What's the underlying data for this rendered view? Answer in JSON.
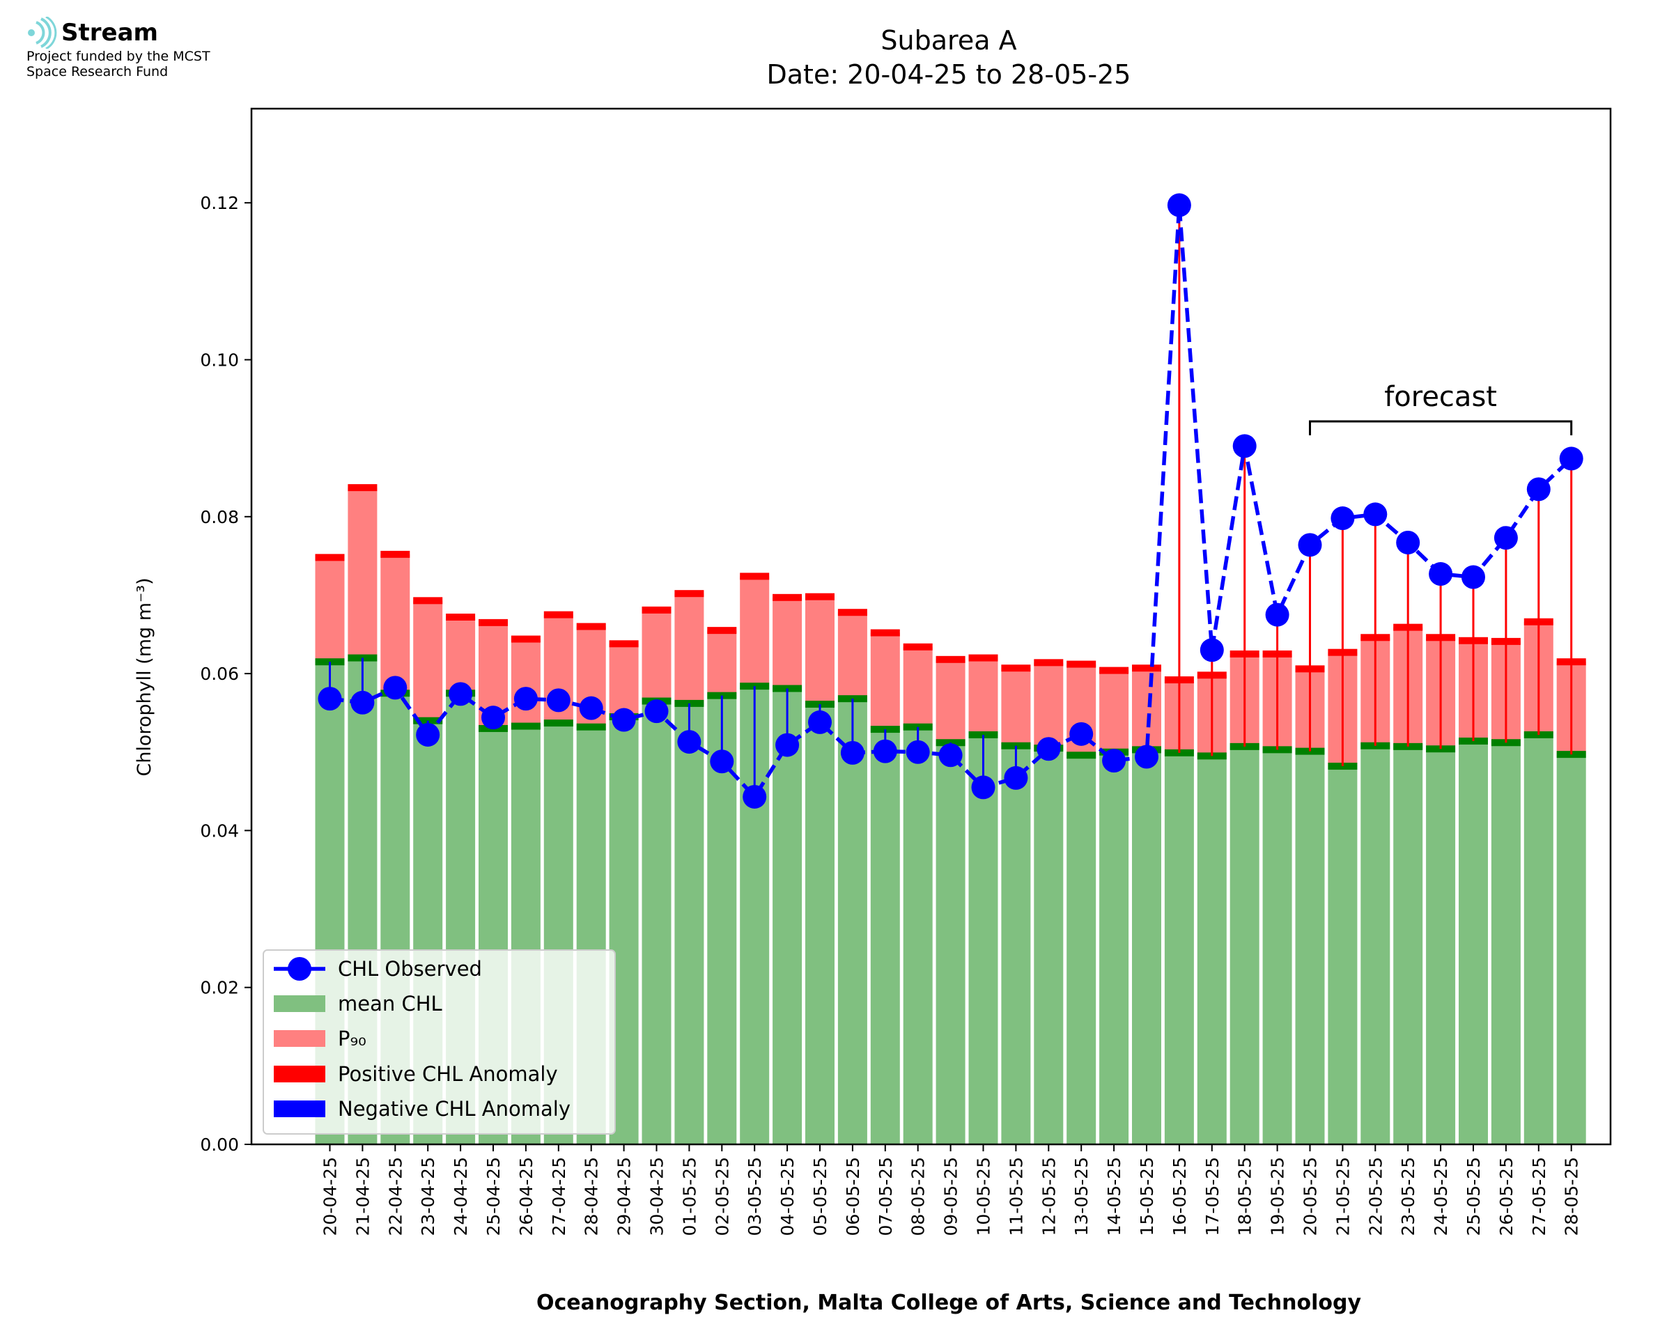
{
  "logo": {
    "name": "Stream",
    "line1": "Project funded by the MCST",
    "line2": "Space Research Fund"
  },
  "colors": {
    "mean": "#80c080",
    "p90": "#ff8080",
    "positive": "#ff0000",
    "negative": "#0000ff",
    "observed": "#0000ff",
    "mean_cap": "#008000"
  },
  "chart_data": {
    "type": "bar",
    "title": "Subarea A",
    "subtitle": "Date: 20-04-25 to 28-05-25",
    "xlabel": "Oceanography Section, Malta College of Arts, Science and Technology",
    "ylabel": "Chlorophyll (mg m⁻³)",
    "ylim": [
      0,
      0.132
    ],
    "yticks": [
      "0.00",
      "0.02",
      "0.04",
      "0.06",
      "0.08",
      "0.10",
      "0.12"
    ],
    "ytick_values": [
      0,
      0.02,
      0.04,
      0.06,
      0.08,
      0.1,
      0.12
    ],
    "categories": [
      "20-04-25",
      "21-04-25",
      "22-04-25",
      "23-04-25",
      "24-04-25",
      "25-04-25",
      "26-04-25",
      "27-04-25",
      "28-04-25",
      "29-04-25",
      "30-04-25",
      "01-05-25",
      "02-05-25",
      "03-05-25",
      "04-05-25",
      "05-05-25",
      "06-05-25",
      "07-05-25",
      "08-05-25",
      "09-05-25",
      "10-05-25",
      "11-05-25",
      "12-05-25",
      "13-05-25",
      "14-05-25",
      "15-05-25",
      "16-05-25",
      "17-05-25",
      "18-05-25",
      "19-05-25",
      "20-05-25",
      "21-05-25",
      "22-05-25",
      "23-05-25",
      "24-05-25",
      "25-05-25",
      "26-05-25",
      "27-05-25",
      "28-05-25"
    ],
    "series": [
      {
        "name": "mean CHL",
        "values": [
          0.0615,
          0.062,
          0.0575,
          0.054,
          0.0575,
          0.053,
          0.0533,
          0.0537,
          0.0532,
          0.0545,
          0.0565,
          0.0562,
          0.0572,
          0.0584,
          0.0581,
          0.0561,
          0.0568,
          0.0529,
          0.0532,
          0.0512,
          0.0522,
          0.0508,
          0.0505,
          0.0496,
          0.05,
          0.0503,
          0.0499,
          0.0495,
          0.0507,
          0.0503,
          0.0501,
          0.0482,
          0.0508,
          0.0507,
          0.0504,
          0.0514,
          0.0512,
          0.0522,
          0.0497
        ]
      },
      {
        "name": "P₉₀",
        "values": [
          0.0748,
          0.0837,
          0.0752,
          0.0693,
          0.0672,
          0.0665,
          0.0644,
          0.0675,
          0.066,
          0.0638,
          0.0681,
          0.0702,
          0.0655,
          0.0724,
          0.0697,
          0.0698,
          0.0678,
          0.0652,
          0.0634,
          0.0618,
          0.062,
          0.0607,
          0.0614,
          0.0612,
          0.0604,
          0.0607,
          0.0592,
          0.0598,
          0.0625,
          0.0625,
          0.0606,
          0.0627,
          0.0646,
          0.0659,
          0.0646,
          0.0642,
          0.0641,
          0.0666,
          0.0615
        ]
      },
      {
        "name": "CHL Observed",
        "values": [
          0.0568,
          0.0563,
          0.0582,
          0.0522,
          0.0574,
          0.0544,
          0.0568,
          0.0566,
          0.0556,
          0.0541,
          0.0552,
          0.0513,
          0.0488,
          0.0443,
          0.0509,
          0.0538,
          0.0499,
          0.0501,
          0.05,
          0.0496,
          0.0455,
          0.0467,
          0.0504,
          0.0523,
          0.0489,
          0.0494,
          0.1197,
          0.063,
          0.089,
          0.0675,
          0.0764,
          0.0798,
          0.0803,
          0.0767,
          0.0727,
          0.0723,
          0.0773,
          0.0835,
          0.0874
        ]
      }
    ],
    "legend": {
      "placement": "lower-left",
      "entries": [
        "CHL Observed",
        "mean CHL",
        "P₉₀",
        "Positive CHL Anomaly",
        "Negative CHL Anomaly"
      ]
    },
    "annotation": {
      "text": "forecast",
      "from": "20-05-25",
      "to": "28-05-25"
    },
    "grid": false
  }
}
